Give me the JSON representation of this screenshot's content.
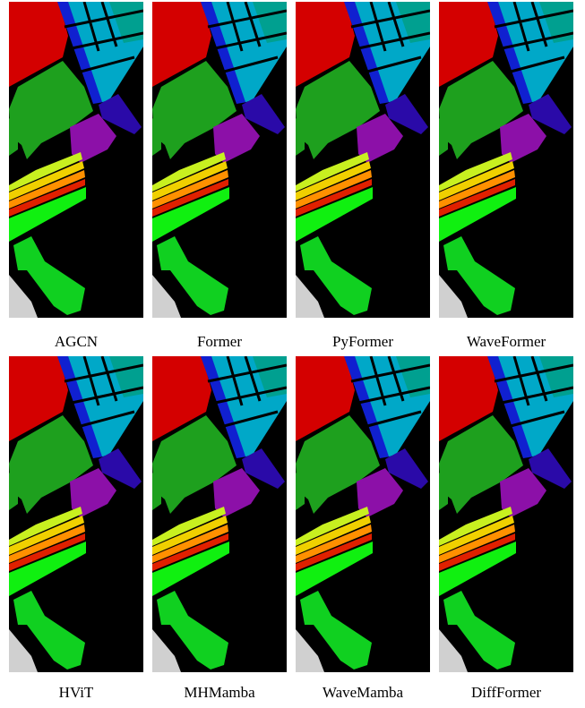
{
  "rows": [
    {
      "captions": [
        "AGCN",
        "Former",
        "PyFormer",
        "WaveFormer"
      ]
    },
    {
      "captions": [
        "HViT",
        "MHMamba",
        "WaveMamba",
        "DiffFormer"
      ]
    }
  ]
}
